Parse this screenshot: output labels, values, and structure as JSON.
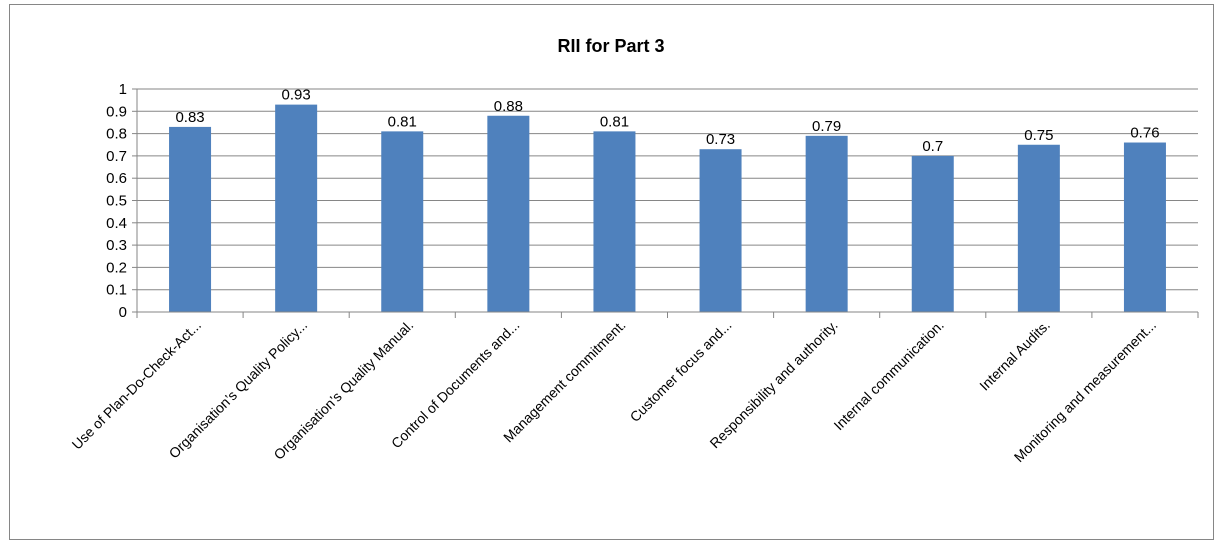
{
  "chart_data": {
    "type": "bar",
    "title": "RII for Part 3",
    "categories": [
      "Use of Plan-Do-Check-Act...",
      "Organisation’s Quality Policy...",
      "Organisation’s Quality Manual.",
      "Control of Documents and...",
      "Management commitment.",
      "Customer focus and...",
      "Responsibility and authority.",
      "Internal communication.",
      "Internal Audits.",
      "Monitoring and measurement..."
    ],
    "values": [
      0.83,
      0.93,
      0.81,
      0.88,
      0.81,
      0.73,
      0.79,
      0.7,
      0.75,
      0.76
    ],
    "data_labels": [
      "0.83",
      "0.93",
      "0.81",
      "0.88",
      "0.81",
      "0.73",
      "0.79",
      "0.7",
      "0.75",
      "0.76"
    ],
    "y_ticks": [
      "0",
      "0.1",
      "0.2",
      "0.3",
      "0.4",
      "0.5",
      "0.6",
      "0.7",
      "0.8",
      "0.9",
      "1"
    ],
    "ylim": [
      0,
      1
    ],
    "grid": true,
    "legend": "none",
    "bar_color": "#4f81bd",
    "grid_color": "#868686"
  }
}
